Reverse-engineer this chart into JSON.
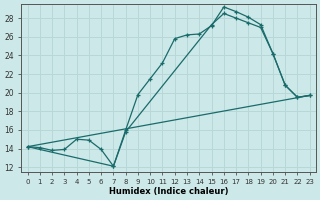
{
  "xlabel": "Humidex (Indice chaleur)",
  "background_color": "#cde8e8",
  "grid_color": "#b8d8d8",
  "line_color": "#1a6b6b",
  "xlim": [
    -0.5,
    23.5
  ],
  "ylim": [
    11.5,
    29.5
  ],
  "xticks": [
    0,
    1,
    2,
    3,
    4,
    5,
    6,
    7,
    8,
    9,
    10,
    11,
    12,
    13,
    14,
    15,
    16,
    17,
    18,
    19,
    20,
    21,
    22,
    23
  ],
  "yticks": [
    12,
    14,
    16,
    18,
    20,
    22,
    24,
    26,
    28
  ],
  "line1_x": [
    0,
    1,
    2,
    3,
    4,
    5,
    6,
    7,
    8,
    9,
    10,
    11,
    12,
    13,
    14,
    15,
    16,
    17,
    18,
    19,
    20,
    21,
    22,
    23
  ],
  "line1_y": [
    14.2,
    14.1,
    13.8,
    13.9,
    15.0,
    14.9,
    13.9,
    12.1,
    16.0,
    19.8,
    21.5,
    23.2,
    25.8,
    26.2,
    26.3,
    27.2,
    29.2,
    28.7,
    28.1,
    27.3,
    24.2,
    20.8,
    19.5,
    19.7
  ],
  "line2_x": [
    0,
    7,
    8,
    15,
    16,
    17,
    18,
    19,
    20,
    21,
    22,
    23
  ],
  "line2_y": [
    14.2,
    12.1,
    15.8,
    27.3,
    28.5,
    28.0,
    27.5,
    27.0,
    24.2,
    20.8,
    19.5,
    19.7
  ],
  "line3_x": [
    0,
    23
  ],
  "line3_y": [
    14.2,
    19.7
  ]
}
